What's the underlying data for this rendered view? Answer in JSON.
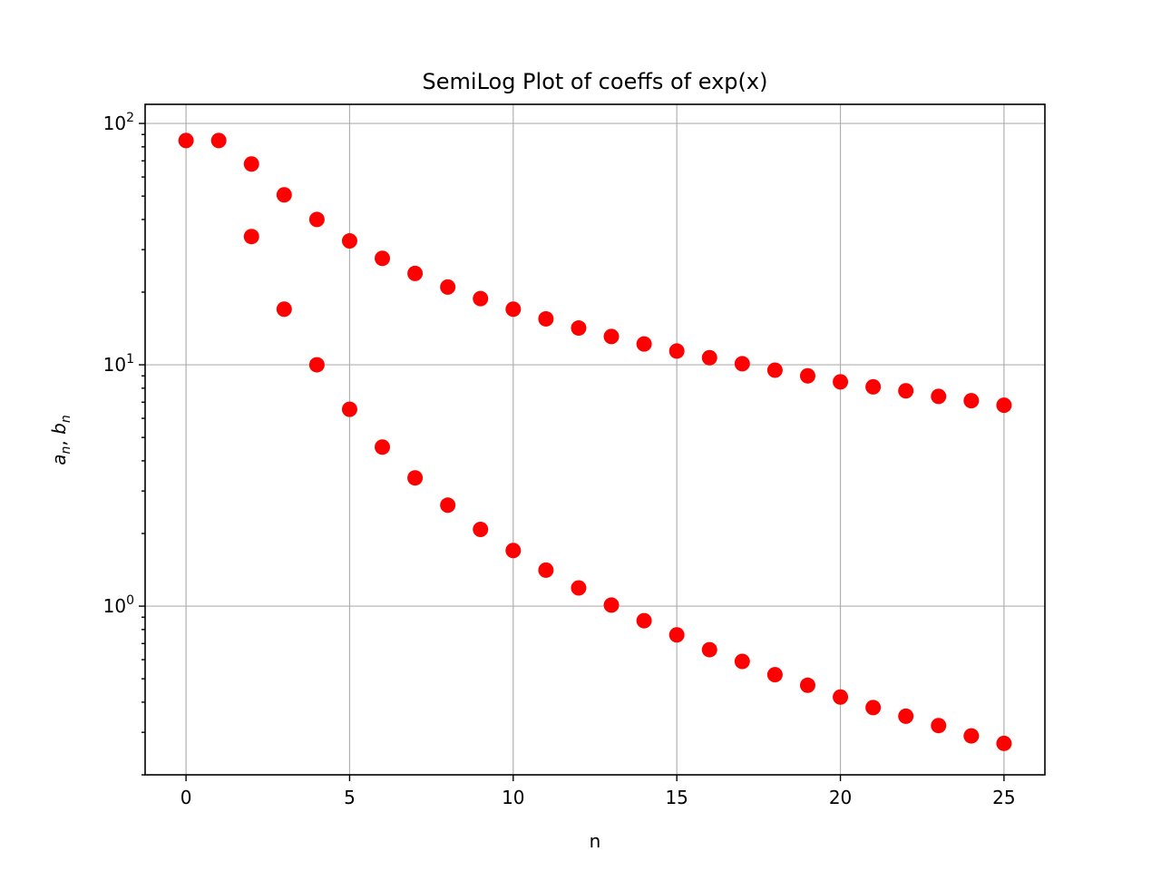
{
  "chart_data": {
    "type": "scatter",
    "title": "SemiLog Plot of coeffs of exp(x)",
    "xlabel": "n",
    "ylabel_main": "a",
    "ylabel_sub1": "n",
    "ylabel_sep": ", ",
    "ylabel_main2": "b",
    "ylabel_sub2": "n",
    "yscale": "log",
    "grid": true,
    "xlim": [
      -1.25,
      26.25
    ],
    "ylim": [
      0.2,
      120
    ],
    "x_ticks": [
      {
        "value": 0,
        "label": "0"
      },
      {
        "value": 5,
        "label": "5"
      },
      {
        "value": 10,
        "label": "10"
      },
      {
        "value": 15,
        "label": "15"
      },
      {
        "value": 20,
        "label": "20"
      },
      {
        "value": 25,
        "label": "25"
      }
    ],
    "y_ticks": [
      {
        "value": 1,
        "base": "10",
        "exp": "0"
      },
      {
        "value": 10,
        "base": "10",
        "exp": "1"
      },
      {
        "value": 100,
        "base": "10",
        "exp": "2"
      }
    ],
    "marker_color": "#ff0000",
    "series": [
      {
        "x": [
          0,
          1,
          2,
          3,
          4,
          5,
          6,
          7,
          8,
          9,
          10,
          11,
          12,
          13,
          14,
          15,
          16,
          17,
          18,
          19,
          20,
          21,
          22,
          23,
          24,
          25
        ],
        "values": [
          85.0,
          85.0,
          67.9,
          50.6,
          40.0,
          32.6,
          27.6,
          23.9,
          21.0,
          18.8,
          17.0,
          15.5,
          14.2,
          13.1,
          12.2,
          11.4,
          10.7,
          10.1,
          9.5,
          9.0,
          8.5,
          8.1,
          7.8,
          7.4,
          7.1,
          6.8
        ]
      },
      {
        "x": [
          2,
          3,
          4,
          5,
          6,
          7,
          8,
          9,
          10,
          11,
          12,
          13,
          14,
          15,
          16,
          17,
          18,
          19,
          20,
          21,
          22,
          23,
          24,
          25
        ],
        "values": [
          34.0,
          17.0,
          10.0,
          6.54,
          4.56,
          3.4,
          2.62,
          2.08,
          1.7,
          1.41,
          1.19,
          1.01,
          0.87,
          0.76,
          0.66,
          0.59,
          0.52,
          0.47,
          0.42,
          0.38,
          0.35,
          0.32,
          0.29,
          0.27
        ]
      }
    ]
  }
}
